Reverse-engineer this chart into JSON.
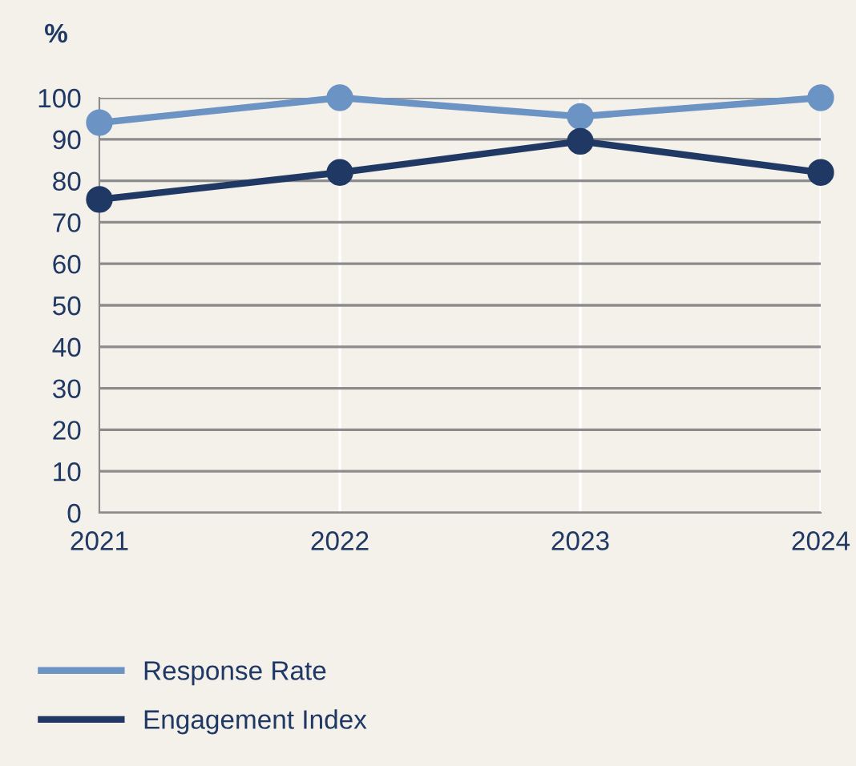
{
  "chart_data": {
    "type": "line",
    "ylabel": "%",
    "categories": [
      "2021",
      "2022",
      "2023",
      "2024"
    ],
    "series": [
      {
        "name": "Response Rate",
        "color": "#6b93c4",
        "values": [
          94,
          100,
          95.5,
          100
        ]
      },
      {
        "name": "Engagement Index",
        "color": "#1f3864",
        "values": [
          75.5,
          82,
          89.5,
          82
        ]
      }
    ],
    "ylim": [
      0,
      100
    ],
    "yticks": [
      0,
      10,
      20,
      30,
      40,
      50,
      60,
      70,
      80,
      90,
      100
    ],
    "grid": true,
    "legend": "bottom",
    "marker": "circle",
    "line_style": "solid"
  }
}
